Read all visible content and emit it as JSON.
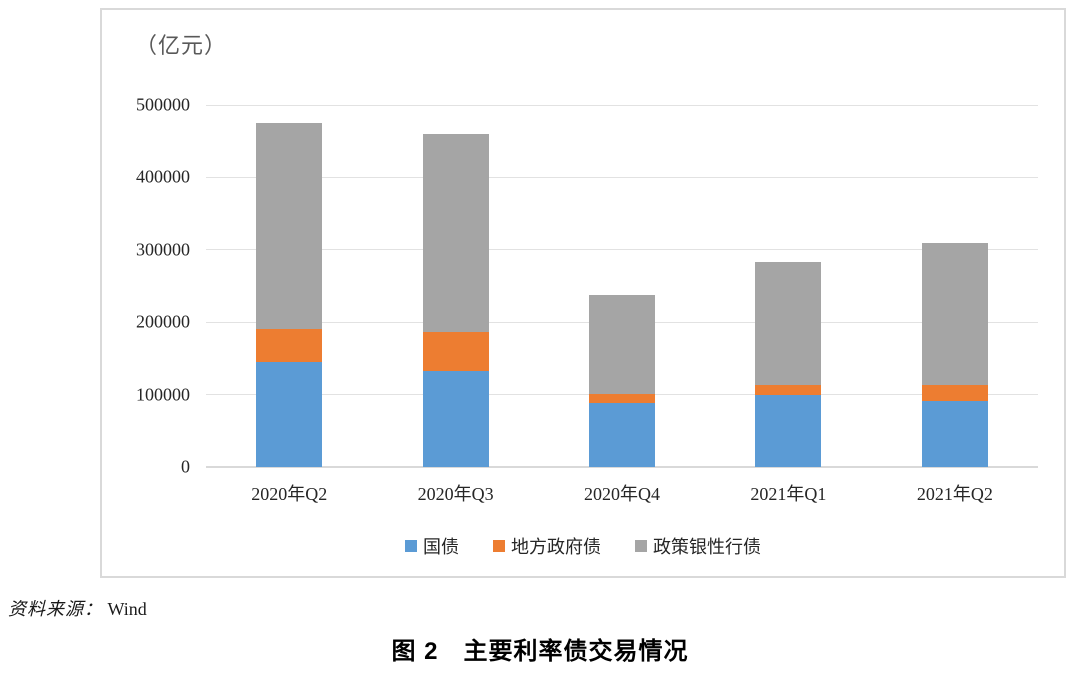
{
  "unit_label": "（亿元）",
  "source": {
    "prefix": "资料来源：",
    "text": "Wind"
  },
  "caption": "图 2　主要利率债交易情况",
  "colors": {
    "bar_blue": "#5B9BD5",
    "bar_orange": "#ED7D31",
    "bar_gray": "#A5A5A5",
    "gridline": "#E2E2E2",
    "frame_border": "#D9D9D9",
    "axis_text": "#262626",
    "unit_text": "#595959"
  },
  "chart_data": {
    "type": "bar",
    "stacked": true,
    "title": "",
    "xlabel": "",
    "ylabel": "（亿元）",
    "categories": [
      "2020年Q2",
      "2020年Q3",
      "2020年Q4",
      "2021年Q1",
      "2021年Q2"
    ],
    "series": [
      {
        "name": "国债",
        "color": "#5B9BD5",
        "values": [
          145000,
          133000,
          88000,
          100000,
          91000
        ]
      },
      {
        "name": "地方政府债",
        "color": "#ED7D31",
        "values": [
          46000,
          53000,
          13000,
          13000,
          22000
        ]
      },
      {
        "name": "政策银性行债",
        "color": "#A5A5A5",
        "values": [
          284000,
          274000,
          136000,
          170000,
          197000
        ]
      }
    ],
    "totals": [
      475000,
      460000,
      237000,
      283000,
      310000
    ],
    "ylim": [
      0,
      500000
    ],
    "y_ticks": [
      0,
      100000,
      200000,
      300000,
      400000,
      500000
    ],
    "grid": true,
    "legend_position": "bottom"
  }
}
